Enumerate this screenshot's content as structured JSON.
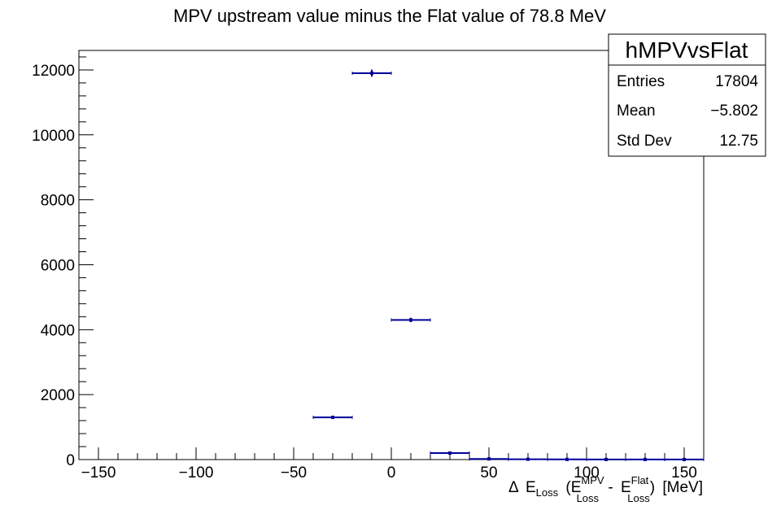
{
  "chart_data": {
    "type": "scatter",
    "style": "histogram-error-bars",
    "title": "MPV upstream value minus the Flat value of 78.8 MeV",
    "xlabel": {
      "delta": "Δ",
      "e1": "E",
      "loss1": "Loss",
      "open": "(",
      "e2": "E",
      "mpv_sup": "MPV",
      "loss2": "Loss",
      "minus": "-",
      "e3": "E",
      "flat_sup": "Flat",
      "loss3": "Loss",
      "close": ")",
      "unit": "[MeV]"
    },
    "ylabel": "",
    "xlim": [
      -160,
      160
    ],
    "ylim": [
      0,
      12600
    ],
    "grid": false,
    "x_ticks": [
      -150,
      -100,
      -50,
      0,
      50,
      100,
      150
    ],
    "x_tick_labels": [
      "−150",
      "−100",
      "−50",
      "0",
      "50",
      "100",
      "150"
    ],
    "y_ticks": [
      0,
      2000,
      4000,
      6000,
      8000,
      10000,
      12000
    ],
    "y_tick_labels": [
      "0",
      "2000",
      "4000",
      "6000",
      "8000",
      "10000",
      "12000"
    ],
    "bin_width": 20,
    "points": [
      {
        "x": -30,
        "y": 1300,
        "err": 36
      },
      {
        "x": -10,
        "y": 11900,
        "err": 109
      },
      {
        "x": 10,
        "y": 4300,
        "err": 66
      },
      {
        "x": 30,
        "y": 200,
        "err": 14
      },
      {
        "x": 50,
        "y": 20,
        "err": 4
      },
      {
        "x": 70,
        "y": 10,
        "err": 3
      },
      {
        "x": 90,
        "y": 5,
        "err": 2
      },
      {
        "x": 110,
        "y": 4,
        "err": 2
      },
      {
        "x": 130,
        "y": 3,
        "err": 2
      },
      {
        "x": 150,
        "y": 2,
        "err": 1
      }
    ],
    "marker_color": "#000099",
    "stats_box": {
      "name": "hMPVvsFlat",
      "placement": "top-right",
      "rows": [
        {
          "label": "Entries",
          "value": "17804"
        },
        {
          "label": "Mean",
          "value": "−5.802"
        },
        {
          "label": "Std Dev",
          "value": "12.75"
        }
      ]
    }
  }
}
